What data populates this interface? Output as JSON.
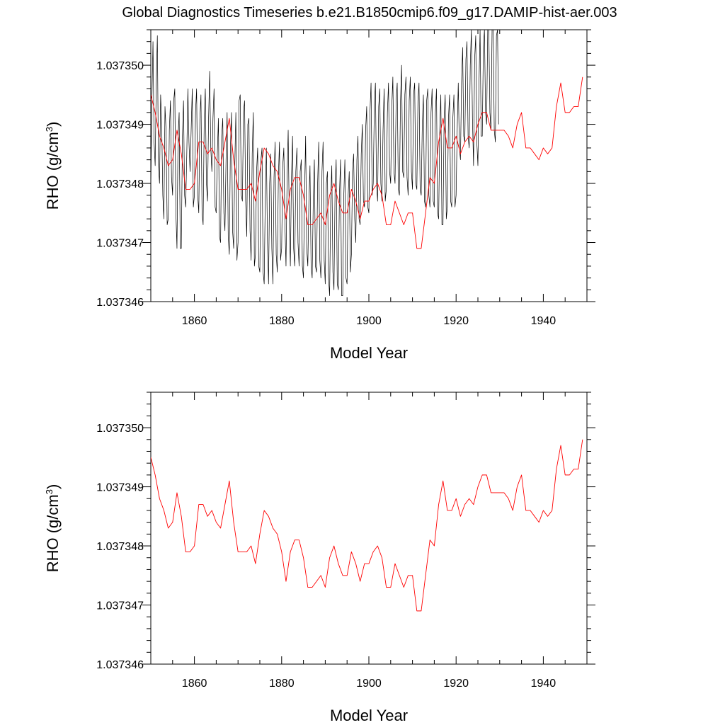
{
  "title": "Global Diagnostics Timeseries b.e21.B1850cmip6.f09_g17.DAMIP-hist-aer.003",
  "colors": {
    "monthly": "#000000",
    "annual": "#ff0000",
    "axes": "#000000",
    "background": "#ffffff"
  },
  "chart_data": [
    {
      "type": "line",
      "xlabel": "Model Year",
      "ylabel": "RHO (g/cm",
      "ylabel_sup": "3",
      "ylabel_close": ")",
      "xlim": [
        1850,
        1950
      ],
      "ylim": [
        1.037346,
        1.0373506
      ],
      "xticks": [
        1860,
        1880,
        1900,
        1920,
        1940
      ],
      "xtick_labels": [
        "1860",
        "1880",
        "1900",
        "1920",
        "1940"
      ],
      "yticks": [
        1.037346,
        1.037347,
        1.037348,
        1.037349,
        1.03735
      ],
      "ytick_labels": [
        "1.037346",
        "1.037347",
        "1.037348",
        "1.037349",
        "1.037350"
      ],
      "grid": false,
      "series": [
        {
          "x_start": 1850,
          "x_step": 0.25,
          "values": [
            1.0373479,
            1.0373494,
            1.0373504,
            1.0373487,
            1.0373483,
            1.0373497,
            1.0373505,
            1.0373483,
            1.037348,
            1.0373495,
            1.037349,
            1.0373478,
            1.0373474,
            1.0373493,
            1.0373489,
            1.0373473,
            1.0373474,
            1.0373489,
            1.0373494,
            1.0373481,
            1.0373478,
            1.0373494,
            1.0373496,
            1.0373475,
            1.0373469,
            1.0373488,
            1.0373492,
            1.0373469,
            1.0373469,
            1.0373488,
            1.0373494,
            1.0373478,
            1.0373476,
            1.0373485,
            1.0373496,
            1.0373487,
            1.0373482,
            1.0373489,
            1.0373496,
            1.0373476,
            1.0373478,
            1.0373492,
            1.0373496,
            1.0373478,
            1.0373475,
            1.0373491,
            1.0373495,
            1.0373475,
            1.0373473,
            1.0373491,
            1.0373496,
            1.037348,
            1.0373477,
            1.0373491,
            1.0373499,
            1.0373486,
            1.0373482,
            1.0373491,
            1.0373496,
            1.0373476,
            1.0373475,
            1.0373485,
            1.0373491,
            1.0373471,
            1.037347,
            1.0373488,
            1.0373491,
            1.0373475,
            1.0373472,
            1.0373484,
            1.0373492,
            1.0373471,
            1.0373468,
            1.0373486,
            1.0373492,
            1.0373472,
            1.0373469,
            1.0373483,
            1.0373492,
            1.0373467,
            1.037347,
            1.0373494,
            1.0373495,
            1.0373478,
            1.0373477,
            1.0373492,
            1.0373494,
            1.0373477,
            1.0373471,
            1.037349,
            1.0373491,
            1.0373472,
            1.0373467,
            1.0373485,
            1.0373492,
            1.0373466,
            1.0373468,
            1.0373482,
            1.0373486,
            1.0373466,
            1.0373465,
            1.0373484,
            1.0373486,
            1.0373465,
            1.0373463,
            1.0373478,
            1.0373486,
            1.037347,
            1.0373463,
            1.037348,
            1.0373485,
            1.0373469,
            1.0373463,
            1.0373481,
            1.0373487,
            1.0373468,
            1.0373465,
            1.0373481,
            1.0373487,
            1.0373467,
            1.0373469,
            1.0373483,
            1.0373486,
            1.0373473,
            1.0373466,
            1.0373481,
            1.0373489,
            1.0373474,
            1.0373466,
            1.0373481,
            1.0373488,
            1.0373469,
            1.0373466,
            1.0373482,
            1.0373486,
            1.037347,
            1.0373466,
            1.0373482,
            1.0373484,
            1.0373466,
            1.0373464,
            1.0373478,
            1.0373488,
            1.0373469,
            1.0373466,
            1.0373477,
            1.0373483,
            1.0373466,
            1.0373464,
            1.0373477,
            1.0373484,
            1.0373466,
            1.0373465,
            1.037348,
            1.0373487,
            1.0373467,
            1.0373464,
            1.0373482,
            1.0373487,
            1.0373467,
            1.0373463,
            1.037348,
            1.0373482,
            1.0373464,
            1.0373461,
            1.0373477,
            1.0373483,
            1.0373465,
            1.0373462,
            1.0373479,
            1.0373484,
            1.0373463,
            1.0373462,
            1.0373478,
            1.0373484,
            1.0373461,
            1.0373461,
            1.0373478,
            1.0373484,
            1.0373464,
            1.0373463,
            1.0373478,
            1.0373482,
            1.0373465,
            1.0373468,
            1.0373482,
            1.0373485,
            1.0373474,
            1.037347,
            1.0373484,
            1.0373488,
            1.0373474,
            1.0373473,
            1.0373485,
            1.037349,
            1.0373477,
            1.0373476,
            1.0373489,
            1.0373493,
            1.0373476,
            1.0373475,
            1.0373492,
            1.0373497,
            1.0373478,
            1.037348,
            1.0373493,
            1.0373497,
            1.037348,
            1.0373477,
            1.0373493,
            1.0373496,
            1.037348,
            1.0373477,
            1.0373489,
            1.0373496,
            1.0373477,
            1.0373479,
            1.0373492,
            1.0373497,
            1.0373482,
            1.037348,
            1.0373493,
            1.0373498,
            1.0373482,
            1.037348,
            1.0373494,
            1.0373497,
            1.0373479,
            1.0373478,
            1.0373494,
            1.03735,
            1.0373482,
            1.0373481,
            1.0373495,
            1.0373498,
            1.0373481,
            1.0373478,
            1.0373494,
            1.0373498,
            1.0373482,
            1.0373479,
            1.0373495,
            1.0373497,
            1.037348,
            1.0373479,
            1.0373494,
            1.0373497,
            1.0373479,
            1.0373478,
            1.037349,
            1.0373495,
            1.0373477,
            1.0373476,
            1.0373494,
            1.0373496,
            1.0373478,
            1.0373476,
            1.0373492,
            1.0373496,
            1.0373477,
            1.0373476,
            1.0373492,
            1.0373496,
            1.0373475,
            1.0373474,
            1.0373489,
            1.0373495,
            1.0373473,
            1.0373473,
            1.0373491,
            1.0373495,
            1.0373474,
            1.0373476,
            1.0373491,
            1.0373495,
            1.0373477,
            1.0373476,
            1.0373491,
            1.0373495,
            1.0373476,
            1.0373478,
            1.0373489,
            1.0373497,
            1.0373486,
            1.0373484,
            1.0373497,
            1.0373503,
            1.0373488,
            1.0373487,
            1.0373501,
            1.0373504,
            1.0373488,
            1.0373486,
            1.03735,
            1.0373506,
            1.0373491,
            1.0373483,
            1.0373501,
            1.0373505,
            1.0373487,
            1.0373483,
            1.0373497,
            1.0373506,
            1.0373488,
            1.0373488,
            1.0373503,
            1.0373506,
            1.0373492,
            1.037349,
            1.0373506,
            1.0373506,
            1.0373492,
            1.0373489,
            1.0373506,
            1.0373506,
            1.0373489,
            1.0373487,
            1.0373505,
            1.0373506,
            1.037349
          ]
        },
        {
          "x": [
            1850,
            1851,
            1852,
            1853,
            1854,
            1855,
            1856,
            1857,
            1858,
            1859,
            1860,
            1861,
            1862,
            1863,
            1864,
            1865,
            1866,
            1867,
            1868,
            1869,
            1870,
            1871,
            1872,
            1873,
            1874,
            1875,
            1876,
            1877,
            1878,
            1879,
            1880,
            1881,
            1882,
            1883,
            1884,
            1885,
            1886,
            1887,
            1888,
            1889,
            1890,
            1891,
            1892,
            1893,
            1894,
            1895,
            1896,
            1897,
            1898,
            1899,
            1900,
            1901,
            1902,
            1903,
            1904,
            1905,
            1906,
            1907,
            1908,
            1909,
            1910,
            1911,
            1912,
            1913,
            1914,
            1915,
            1916,
            1917,
            1918,
            1919,
            1920,
            1921,
            1922,
            1923,
            1924,
            1925,
            1926,
            1927,
            1928,
            1929,
            1930,
            1931,
            1932,
            1933,
            1934,
            1935,
            1936,
            1937,
            1938,
            1939,
            1940,
            1941,
            1942,
            1943,
            1944,
            1945,
            1946,
            1947,
            1948,
            1949
          ],
          "values": [
            1.0373495,
            1.0373492,
            1.0373488,
            1.0373486,
            1.0373483,
            1.0373484,
            1.0373489,
            1.0373485,
            1.0373479,
            1.0373479,
            1.037348,
            1.0373487,
            1.0373487,
            1.0373485,
            1.0373486,
            1.0373484,
            1.0373483,
            1.0373487,
            1.0373491,
            1.0373484,
            1.0373479,
            1.0373479,
            1.0373479,
            1.037348,
            1.0373477,
            1.0373482,
            1.0373486,
            1.0373485,
            1.0373483,
            1.0373482,
            1.0373479,
            1.0373474,
            1.0373479,
            1.0373481,
            1.0373481,
            1.0373478,
            1.0373473,
            1.0373473,
            1.0373474,
            1.0373475,
            1.0373473,
            1.0373478,
            1.037348,
            1.0373477,
            1.0373475,
            1.0373475,
            1.0373479,
            1.0373477,
            1.0373474,
            1.0373477,
            1.0373477,
            1.0373479,
            1.037348,
            1.0373478,
            1.0373473,
            1.0373473,
            1.0373477,
            1.0373475,
            1.0373473,
            1.0373475,
            1.0373475,
            1.0373469,
            1.0373469,
            1.0373475,
            1.0373481,
            1.037348,
            1.0373487,
            1.0373491,
            1.0373486,
            1.0373486,
            1.0373488,
            1.0373485,
            1.0373487,
            1.0373488,
            1.0373487,
            1.037349,
            1.0373492,
            1.0373492,
            1.0373489,
            1.0373489,
            1.0373489,
            1.0373489,
            1.0373488,
            1.0373486,
            1.037349,
            1.0373492,
            1.0373486,
            1.0373486,
            1.0373485,
            1.0373484,
            1.0373486,
            1.0373485,
            1.0373486,
            1.0373493,
            1.0373497,
            1.0373492,
            1.0373492,
            1.0373493,
            1.0373493,
            1.0373498
          ]
        }
      ]
    },
    {
      "type": "line",
      "xlabel": "Model Year",
      "ylabel": "RHO (g/cm",
      "ylabel_sup": "3",
      "ylabel_close": ")",
      "xlim": [
        1850,
        1950
      ],
      "ylim": [
        1.037346,
        1.0373506
      ],
      "xticks": [
        1860,
        1880,
        1900,
        1920,
        1940
      ],
      "xtick_labels": [
        "1860",
        "1880",
        "1900",
        "1920",
        "1940"
      ],
      "yticks": [
        1.037346,
        1.037347,
        1.037348,
        1.037349,
        1.03735
      ],
      "ytick_labels": [
        "1.037346",
        "1.037347",
        "1.037348",
        "1.037349",
        "1.037350"
      ],
      "grid": false,
      "series": [
        {
          "x": [
            1850,
            1851,
            1852,
            1853,
            1854,
            1855,
            1856,
            1857,
            1858,
            1859,
            1860,
            1861,
            1862,
            1863,
            1864,
            1865,
            1866,
            1867,
            1868,
            1869,
            1870,
            1871,
            1872,
            1873,
            1874,
            1875,
            1876,
            1877,
            1878,
            1879,
            1880,
            1881,
            1882,
            1883,
            1884,
            1885,
            1886,
            1887,
            1888,
            1889,
            1890,
            1891,
            1892,
            1893,
            1894,
            1895,
            1896,
            1897,
            1898,
            1899,
            1900,
            1901,
            1902,
            1903,
            1904,
            1905,
            1906,
            1907,
            1908,
            1909,
            1910,
            1911,
            1912,
            1913,
            1914,
            1915,
            1916,
            1917,
            1918,
            1919,
            1920,
            1921,
            1922,
            1923,
            1924,
            1925,
            1926,
            1927,
            1928,
            1929,
            1930,
            1931,
            1932,
            1933,
            1934,
            1935,
            1936,
            1937,
            1938,
            1939,
            1940,
            1941,
            1942,
            1943,
            1944,
            1945,
            1946,
            1947,
            1948,
            1949
          ],
          "values": [
            1.0373495,
            1.0373492,
            1.0373488,
            1.0373486,
            1.0373483,
            1.0373484,
            1.0373489,
            1.0373485,
            1.0373479,
            1.0373479,
            1.037348,
            1.0373487,
            1.0373487,
            1.0373485,
            1.0373486,
            1.0373484,
            1.0373483,
            1.0373487,
            1.0373491,
            1.0373484,
            1.0373479,
            1.0373479,
            1.0373479,
            1.037348,
            1.0373477,
            1.0373482,
            1.0373486,
            1.0373485,
            1.0373483,
            1.0373482,
            1.0373479,
            1.0373474,
            1.0373479,
            1.0373481,
            1.0373481,
            1.0373478,
            1.0373473,
            1.0373473,
            1.0373474,
            1.0373475,
            1.0373473,
            1.0373478,
            1.037348,
            1.0373477,
            1.0373475,
            1.0373475,
            1.0373479,
            1.0373477,
            1.0373474,
            1.0373477,
            1.0373477,
            1.0373479,
            1.037348,
            1.0373478,
            1.0373473,
            1.0373473,
            1.0373477,
            1.0373475,
            1.0373473,
            1.0373475,
            1.0373475,
            1.0373469,
            1.0373469,
            1.0373475,
            1.0373481,
            1.037348,
            1.0373487,
            1.0373491,
            1.0373486,
            1.0373486,
            1.0373488,
            1.0373485,
            1.0373487,
            1.0373488,
            1.0373487,
            1.037349,
            1.0373492,
            1.0373492,
            1.0373489,
            1.0373489,
            1.0373489,
            1.0373489,
            1.0373488,
            1.0373486,
            1.037349,
            1.0373492,
            1.0373486,
            1.0373486,
            1.0373485,
            1.0373484,
            1.0373486,
            1.0373485,
            1.0373486,
            1.0373493,
            1.0373497,
            1.0373492,
            1.0373492,
            1.0373493,
            1.0373493,
            1.0373498
          ]
        }
      ]
    }
  ]
}
